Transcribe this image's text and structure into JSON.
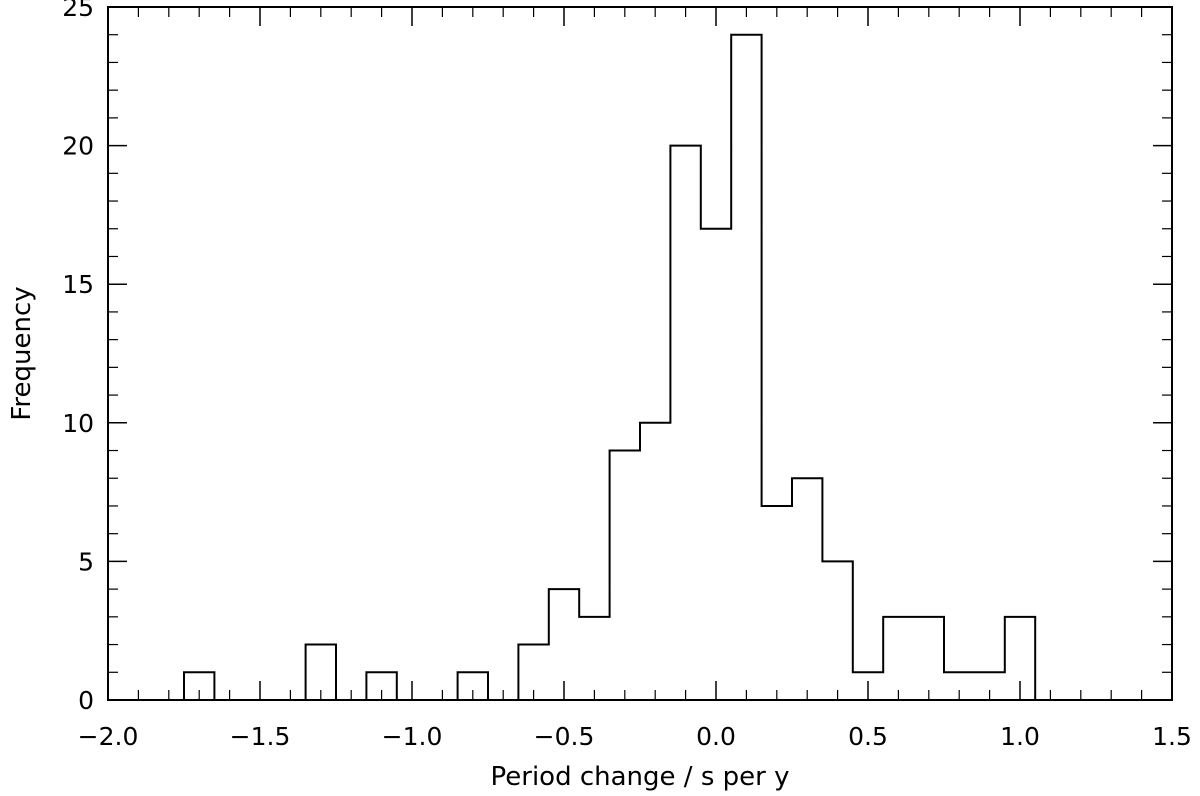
{
  "chart_data": {
    "type": "histogram",
    "title": "",
    "xlabel": "Period change / s per y",
    "ylabel": "Frequency",
    "xlim": [
      -2.0,
      1.5
    ],
    "ylim": [
      0,
      25
    ],
    "bin_width": 0.1,
    "bin_centers": [
      -1.9,
      -1.8,
      -1.7,
      -1.6,
      -1.5,
      -1.4,
      -1.3,
      -1.2,
      -1.1,
      -1.0,
      -0.9,
      -0.8,
      -0.7,
      -0.6,
      -0.5,
      -0.4,
      -0.3,
      -0.2,
      -0.1,
      0.0,
      0.1,
      0.2,
      0.3,
      0.4,
      0.5,
      0.6,
      0.7,
      0.8,
      0.9,
      1.0,
      1.1,
      1.2,
      1.3,
      1.4
    ],
    "counts": [
      0,
      0,
      1,
      0,
      0,
      0,
      2,
      0,
      1,
      0,
      0,
      1,
      0,
      2,
      4,
      3,
      9,
      10,
      20,
      17,
      24,
      7,
      8,
      5,
      1,
      3,
      3,
      1,
      1,
      3,
      0,
      0,
      0,
      0
    ],
    "x_ticks": {
      "values": [
        -2.0,
        -1.5,
        -1.0,
        -0.5,
        0.0,
        0.5,
        1.0,
        1.5
      ],
      "labels": [
        "−2.0",
        "−1.5",
        "−1.0",
        "−0.5",
        "0.0",
        "0.5",
        "1.0",
        "1.5"
      ]
    },
    "y_ticks": {
      "values": [
        0,
        5,
        10,
        15,
        20,
        25
      ],
      "labels": [
        "0",
        "5",
        "10",
        "15",
        "20",
        "25"
      ]
    },
    "grid": false,
    "legend": "none",
    "colors": {
      "line": "#000000",
      "background": "#ffffff"
    }
  }
}
